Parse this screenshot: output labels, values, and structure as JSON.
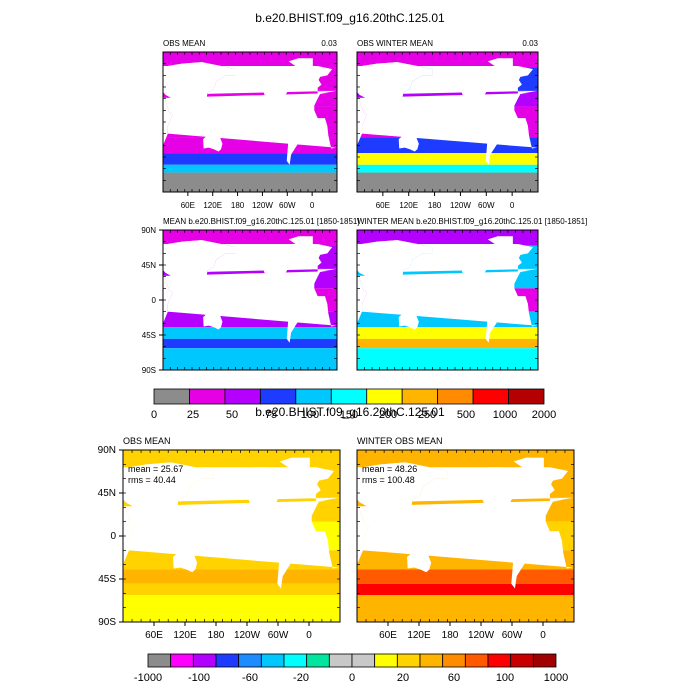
{
  "figure": {
    "title_top": "b.e20.BHIST.f09_g16.20thC.125.01",
    "title_bottom": "b.e20.BHIST.f09_g16.20thC.125.01"
  },
  "colors": {
    "land_white": "#ffffff",
    "missing_gray": "#8c8c8c"
  },
  "chart_data": [
    {
      "type": "heatmap",
      "id": "obs-mean",
      "title": "OBS MEAN",
      "corner_value": "0.03",
      "x_ticks": [
        "60E",
        "120E",
        "180",
        "120W",
        "60W",
        "0"
      ],
      "y_ticks": [],
      "scale": "top",
      "ocean_rows": [
        {
          "from": 90,
          "to": 70,
          "level": 1
        },
        {
          "from": 70,
          "to": 40,
          "level": 1
        },
        {
          "from": 40,
          "to": 20,
          "level": 1
        },
        {
          "from": 20,
          "to": -20,
          "level": 1
        },
        {
          "from": -20,
          "to": -40,
          "level": 1
        },
        {
          "from": -40,
          "to": -55,
          "level": 3
        },
        {
          "from": -55,
          "to": -65,
          "level": 4
        },
        {
          "from": -65,
          "to": -90,
          "level": 0
        }
      ]
    },
    {
      "type": "heatmap",
      "id": "obs-winter-mean",
      "title": "OBS WINTER MEAN",
      "corner_value": "0.03",
      "x_ticks": [
        "60E",
        "120E",
        "180",
        "120W",
        "60W",
        "0"
      ],
      "y_ticks": [],
      "scale": "top",
      "ocean_rows": [
        {
          "from": 90,
          "to": 70,
          "level": 1
        },
        {
          "from": 70,
          "to": 40,
          "level": 3
        },
        {
          "from": 40,
          "to": 20,
          "level": 2
        },
        {
          "from": 20,
          "to": -20,
          "level": 1
        },
        {
          "from": -20,
          "to": -40,
          "level": 3
        },
        {
          "from": -40,
          "to": -55,
          "level": 6
        },
        {
          "from": -55,
          "to": -65,
          "level": 5
        },
        {
          "from": -65,
          "to": -90,
          "level": 0
        }
      ]
    },
    {
      "type": "heatmap",
      "id": "model-mean",
      "title": "MEAN b.e20.BHIST.f09_g16.20thC.125.01 [1850-1851]",
      "corner_value": "",
      "x_ticks": [],
      "y_ticks": [
        "90N",
        "45N",
        "0",
        "45S",
        "90S"
      ],
      "scale": "top",
      "ocean_rows": [
        {
          "from": 90,
          "to": 70,
          "level": 1
        },
        {
          "from": 70,
          "to": 40,
          "level": 2
        },
        {
          "from": 40,
          "to": 15,
          "level": 2
        },
        {
          "from": 15,
          "to": -15,
          "level": 1
        },
        {
          "from": -15,
          "to": -35,
          "level": 2
        },
        {
          "from": -35,
          "to": -50,
          "level": 4
        },
        {
          "from": -50,
          "to": -62,
          "level": 3
        },
        {
          "from": -62,
          "to": -90,
          "level": 4
        }
      ]
    },
    {
      "type": "heatmap",
      "id": "model-winter-mean",
      "title": "WINTER MEAN b.e20.BHIST.f09_g16.20thC.125.01 [1850-1851]",
      "corner_value": "",
      "x_ticks": [],
      "y_ticks": [],
      "scale": "top",
      "ocean_rows": [
        {
          "from": 90,
          "to": 70,
          "level": 2
        },
        {
          "from": 70,
          "to": 40,
          "level": 4
        },
        {
          "from": 40,
          "to": 15,
          "level": 4
        },
        {
          "from": 15,
          "to": -15,
          "level": 1
        },
        {
          "from": -15,
          "to": -35,
          "level": 4
        },
        {
          "from": -35,
          "to": -50,
          "level": 6
        },
        {
          "from": -50,
          "to": -62,
          "level": 7
        },
        {
          "from": -62,
          "to": -90,
          "level": 5
        }
      ]
    },
    {
      "type": "heatmap",
      "id": "diff-obs-mean",
      "title": "OBS MEAN",
      "stats": [
        "mean = 25.67",
        "rms = 40.44"
      ],
      "x_ticks": [
        "60E",
        "120E",
        "180",
        "120W",
        "60W",
        "0"
      ],
      "y_ticks": [
        "90N",
        "45N",
        "0",
        "45S",
        "90S"
      ],
      "scale": "bottom",
      "ocean_rows": [
        {
          "from": 90,
          "to": 70,
          "level": 11
        },
        {
          "from": 70,
          "to": 40,
          "level": 11
        },
        {
          "from": 40,
          "to": 15,
          "level": 11
        },
        {
          "from": 15,
          "to": -15,
          "level": 10
        },
        {
          "from": -15,
          "to": -35,
          "level": 11
        },
        {
          "from": -35,
          "to": -50,
          "level": 12
        },
        {
          "from": -50,
          "to": -62,
          "level": 11
        },
        {
          "from": -62,
          "to": -90,
          "level": 10
        }
      ]
    },
    {
      "type": "heatmap",
      "id": "diff-winter-obs-mean",
      "title": "WINTER OBS MEAN",
      "stats": [
        "mean = 48.26",
        "rms = 100.48"
      ],
      "x_ticks": [
        "60E",
        "120E",
        "180",
        "120W",
        "60W",
        "0"
      ],
      "y_ticks": [],
      "scale": "bottom",
      "ocean_rows": [
        {
          "from": 90,
          "to": 70,
          "level": 12
        },
        {
          "from": 70,
          "to": 40,
          "level": 12
        },
        {
          "from": 40,
          "to": 15,
          "level": 12
        },
        {
          "from": 15,
          "to": -15,
          "level": 11
        },
        {
          "from": -15,
          "to": -35,
          "level": 12
        },
        {
          "from": -35,
          "to": -50,
          "level": 14
        },
        {
          "from": -50,
          "to": -62,
          "level": 15
        },
        {
          "from": -62,
          "to": -90,
          "level": 12
        }
      ]
    }
  ],
  "colorbar_top": {
    "labels": [
      "0",
      "25",
      "50",
      "75",
      "100",
      "150",
      "200",
      "250",
      "500",
      "1000",
      "2000"
    ],
    "colors": [
      "#8c8c8c",
      "#e600e6",
      "#b400ff",
      "#1e3cff",
      "#00c8ff",
      "#00ffff",
      "#ffff00",
      "#ffb400",
      "#ff8c00",
      "#ff0000",
      "#b40000"
    ]
  },
  "colorbar_bottom": {
    "labels": [
      "-1000",
      "-100",
      "-60",
      "-20",
      "0",
      "20",
      "60",
      "100",
      "1000"
    ],
    "colors": [
      "#8c8c8c",
      "#ff00ff",
      "#b400ff",
      "#1e3cff",
      "#1e8cff",
      "#00c8ff",
      "#00ffff",
      "#00e6a0",
      "#c8c8c8",
      "#c8c8c8",
      "#ffff00",
      "#ffd200",
      "#ffb400",
      "#ff8c00",
      "#ff5a00",
      "#ff0000",
      "#c80000",
      "#a00000"
    ]
  }
}
